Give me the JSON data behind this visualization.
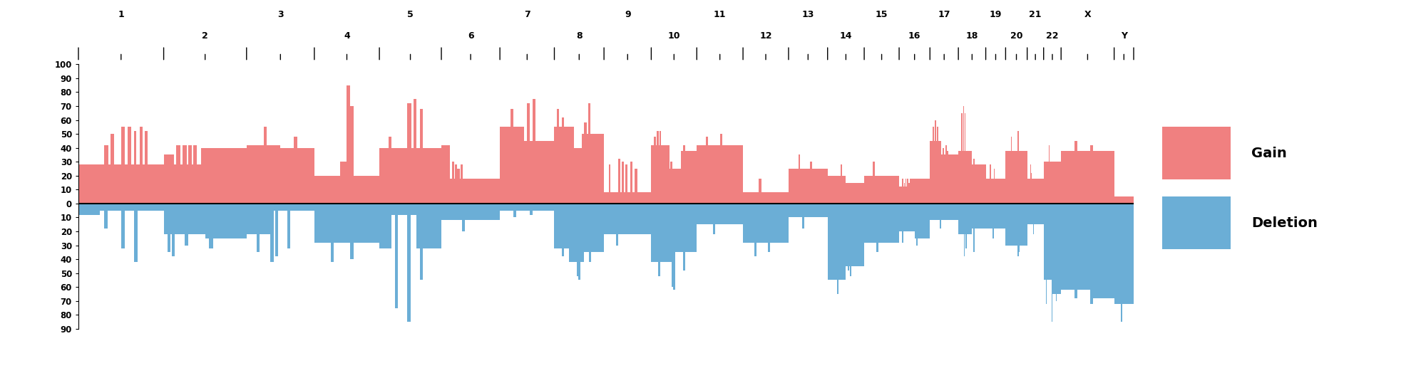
{
  "gain_color": "#F08080",
  "deletion_color": "#6BAED6",
  "background_color": "#FFFFFF",
  "chromosomes": [
    "1",
    "2",
    "3",
    "4",
    "5",
    "6",
    "7",
    "8",
    "9",
    "10",
    "11",
    "12",
    "13",
    "14",
    "15",
    "16",
    "17",
    "18",
    "19",
    "20",
    "21",
    "22",
    "X",
    "Y"
  ],
  "chr_lengths_mb": [
    249,
    242,
    198,
    190,
    181,
    171,
    159,
    145,
    138,
    133,
    135,
    133,
    114,
    107,
    102,
    90,
    83,
    80,
    58,
    63,
    48,
    51,
    155,
    57
  ],
  "gain_data": {
    "1": [
      {
        "x0f": 0.0,
        "x1f": 1.0,
        "val": 28
      },
      {
        "x0f": 0.3,
        "x1f": 0.35,
        "val": 42
      },
      {
        "x0f": 0.38,
        "x1f": 0.42,
        "val": 50
      },
      {
        "x0f": 0.5,
        "x1f": 0.54,
        "val": 55
      },
      {
        "x0f": 0.58,
        "x1f": 0.62,
        "val": 55
      },
      {
        "x0f": 0.65,
        "x1f": 0.68,
        "val": 52
      },
      {
        "x0f": 0.72,
        "x1f": 0.75,
        "val": 55
      },
      {
        "x0f": 0.78,
        "x1f": 0.81,
        "val": 52
      }
    ],
    "2": [
      {
        "x0f": 0.0,
        "x1f": 0.45,
        "val": 28
      },
      {
        "x0f": 0.0,
        "x1f": 0.12,
        "val": 35
      },
      {
        "x0f": 0.15,
        "x1f": 0.2,
        "val": 42
      },
      {
        "x0f": 0.23,
        "x1f": 0.28,
        "val": 42
      },
      {
        "x0f": 0.3,
        "x1f": 0.34,
        "val": 42
      },
      {
        "x0f": 0.36,
        "x1f": 0.4,
        "val": 42
      },
      {
        "x0f": 0.45,
        "x1f": 1.0,
        "val": 40
      }
    ],
    "3": [
      {
        "x0f": 0.0,
        "x1f": 0.5,
        "val": 42
      },
      {
        "x0f": 0.5,
        "x1f": 1.0,
        "val": 40
      },
      {
        "x0f": 0.25,
        "x1f": 0.3,
        "val": 55
      },
      {
        "x0f": 0.7,
        "x1f": 0.75,
        "val": 48
      }
    ],
    "4": [
      {
        "x0f": 0.0,
        "x1f": 0.4,
        "val": 20
      },
      {
        "x0f": 0.4,
        "x1f": 0.5,
        "val": 30
      },
      {
        "x0f": 0.5,
        "x1f": 0.55,
        "val": 85
      },
      {
        "x0f": 0.55,
        "x1f": 0.6,
        "val": 70
      },
      {
        "x0f": 0.6,
        "x1f": 1.0,
        "val": 20
      }
    ],
    "5": [
      {
        "x0f": 0.0,
        "x1f": 1.0,
        "val": 40
      },
      {
        "x0f": 0.15,
        "x1f": 0.2,
        "val": 48
      },
      {
        "x0f": 0.45,
        "x1f": 0.52,
        "val": 72
      },
      {
        "x0f": 0.55,
        "x1f": 0.6,
        "val": 75
      },
      {
        "x0f": 0.65,
        "x1f": 0.7,
        "val": 68
      }
    ],
    "6": [
      {
        "x0f": 0.0,
        "x1f": 0.15,
        "val": 42
      },
      {
        "x0f": 0.15,
        "x1f": 0.4,
        "val": 18
      },
      {
        "x0f": 0.18,
        "x1f": 0.22,
        "val": 30
      },
      {
        "x0f": 0.23,
        "x1f": 0.27,
        "val": 28
      },
      {
        "x0f": 0.27,
        "x1f": 0.32,
        "val": 25
      },
      {
        "x0f": 0.33,
        "x1f": 0.37,
        "val": 28
      },
      {
        "x0f": 0.4,
        "x1f": 1.0,
        "val": 18
      }
    ],
    "7": [
      {
        "x0f": 0.0,
        "x1f": 0.45,
        "val": 55
      },
      {
        "x0f": 0.45,
        "x1f": 1.0,
        "val": 45
      },
      {
        "x0f": 0.2,
        "x1f": 0.25,
        "val": 68
      },
      {
        "x0f": 0.5,
        "x1f": 0.55,
        "val": 72
      },
      {
        "x0f": 0.6,
        "x1f": 0.65,
        "val": 75
      }
    ],
    "8": [
      {
        "x0f": 0.0,
        "x1f": 0.4,
        "val": 55
      },
      {
        "x0f": 0.4,
        "x1f": 0.55,
        "val": 40
      },
      {
        "x0f": 0.55,
        "x1f": 1.0,
        "val": 50
      },
      {
        "x0f": 0.05,
        "x1f": 0.1,
        "val": 68
      },
      {
        "x0f": 0.15,
        "x1f": 0.2,
        "val": 62
      },
      {
        "x0f": 0.6,
        "x1f": 0.65,
        "val": 58
      },
      {
        "x0f": 0.68,
        "x1f": 0.73,
        "val": 72
      }
    ],
    "9": [
      {
        "x0f": 0.0,
        "x1f": 1.0,
        "val": 8
      },
      {
        "x0f": 0.1,
        "x1f": 0.14,
        "val": 28
      },
      {
        "x0f": 0.3,
        "x1f": 0.35,
        "val": 32
      },
      {
        "x0f": 0.38,
        "x1f": 0.42,
        "val": 30
      },
      {
        "x0f": 0.45,
        "x1f": 0.5,
        "val": 28
      },
      {
        "x0f": 0.55,
        "x1f": 0.6,
        "val": 30
      },
      {
        "x0f": 0.65,
        "x1f": 0.7,
        "val": 25
      }
    ],
    "10": [
      {
        "x0f": 0.0,
        "x1f": 0.4,
        "val": 42
      },
      {
        "x0f": 0.4,
        "x1f": 0.65,
        "val": 25
      },
      {
        "x0f": 0.65,
        "x1f": 1.0,
        "val": 38
      },
      {
        "x0f": 0.05,
        "x1f": 0.1,
        "val": 48
      },
      {
        "x0f": 0.12,
        "x1f": 0.16,
        "val": 52
      },
      {
        "x0f": 0.18,
        "x1f": 0.22,
        "val": 52
      },
      {
        "x0f": 0.42,
        "x1f": 0.46,
        "val": 30
      },
      {
        "x0f": 0.7,
        "x1f": 0.74,
        "val": 42
      }
    ],
    "11": [
      {
        "x0f": 0.0,
        "x1f": 1.0,
        "val": 42
      },
      {
        "x0f": 0.2,
        "x1f": 0.25,
        "val": 48
      },
      {
        "x0f": 0.5,
        "x1f": 0.55,
        "val": 50
      }
    ],
    "12": [
      {
        "x0f": 0.0,
        "x1f": 1.0,
        "val": 8
      },
      {
        "x0f": 0.35,
        "x1f": 0.4,
        "val": 18
      }
    ],
    "13": [
      {
        "x0f": 0.0,
        "x1f": 1.0,
        "val": 25
      },
      {
        "x0f": 0.25,
        "x1f": 0.3,
        "val": 35
      },
      {
        "x0f": 0.55,
        "x1f": 0.6,
        "val": 30
      }
    ],
    "14": [
      {
        "x0f": 0.0,
        "x1f": 0.5,
        "val": 20
      },
      {
        "x0f": 0.5,
        "x1f": 1.0,
        "val": 15
      },
      {
        "x0f": 0.35,
        "x1f": 0.4,
        "val": 28
      }
    ],
    "15": [
      {
        "x0f": 0.0,
        "x1f": 1.0,
        "val": 20
      },
      {
        "x0f": 0.25,
        "x1f": 0.3,
        "val": 30
      }
    ],
    "16": [
      {
        "x0f": 0.0,
        "x1f": 0.4,
        "val": 12
      },
      {
        "x0f": 0.4,
        "x1f": 1.0,
        "val": 18
      },
      {
        "x0f": 0.1,
        "x1f": 0.14,
        "val": 18
      },
      {
        "x0f": 0.15,
        "x1f": 0.19,
        "val": 15
      },
      {
        "x0f": 0.2,
        "x1f": 0.24,
        "val": 18
      },
      {
        "x0f": 0.25,
        "x1f": 0.29,
        "val": 18
      },
      {
        "x0f": 0.3,
        "x1f": 0.34,
        "val": 15
      },
      {
        "x0f": 0.35,
        "x1f": 0.39,
        "val": 18
      }
    ],
    "17": [
      {
        "x0f": 0.0,
        "x1f": 0.4,
        "val": 45
      },
      {
        "x0f": 0.4,
        "x1f": 1.0,
        "val": 35
      },
      {
        "x0f": 0.1,
        "x1f": 0.15,
        "val": 55
      },
      {
        "x0f": 0.17,
        "x1f": 0.21,
        "val": 60
      },
      {
        "x0f": 0.25,
        "x1f": 0.3,
        "val": 55
      },
      {
        "x0f": 0.45,
        "x1f": 0.5,
        "val": 40
      },
      {
        "x0f": 0.55,
        "x1f": 0.6,
        "val": 42
      },
      {
        "x0f": 0.6,
        "x1f": 0.65,
        "val": 38
      }
    ],
    "18": [
      {
        "x0f": 0.0,
        "x1f": 0.5,
        "val": 38
      },
      {
        "x0f": 0.5,
        "x1f": 1.0,
        "val": 28
      },
      {
        "x0f": 0.1,
        "x1f": 0.15,
        "val": 65
      },
      {
        "x0f": 0.17,
        "x1f": 0.21,
        "val": 70
      },
      {
        "x0f": 0.22,
        "x1f": 0.26,
        "val": 65
      },
      {
        "x0f": 0.55,
        "x1f": 0.6,
        "val": 32
      }
    ],
    "19": [
      {
        "x0f": 0.0,
        "x1f": 1.0,
        "val": 18
      },
      {
        "x0f": 0.2,
        "x1f": 0.25,
        "val": 28
      },
      {
        "x0f": 0.4,
        "x1f": 0.45,
        "val": 25
      }
    ],
    "20": [
      {
        "x0f": 0.0,
        "x1f": 1.0,
        "val": 38
      },
      {
        "x0f": 0.25,
        "x1f": 0.3,
        "val": 48
      },
      {
        "x0f": 0.55,
        "x1f": 0.6,
        "val": 52
      }
    ],
    "21": [
      {
        "x0f": 0.0,
        "x1f": 1.0,
        "val": 18
      },
      {
        "x0f": 0.2,
        "x1f": 0.24,
        "val": 28
      },
      {
        "x0f": 0.25,
        "x1f": 0.29,
        "val": 22
      }
    ],
    "22": [
      {
        "x0f": 0.0,
        "x1f": 1.0,
        "val": 30
      },
      {
        "x0f": 0.3,
        "x1f": 0.35,
        "val": 42
      }
    ],
    "X": [
      {
        "x0f": 0.0,
        "x1f": 1.0,
        "val": 38
      },
      {
        "x0f": 0.25,
        "x1f": 0.3,
        "val": 45
      },
      {
        "x0f": 0.55,
        "x1f": 0.6,
        "val": 42
      }
    ],
    "Y": [
      {
        "x0f": 0.0,
        "x1f": 1.0,
        "val": 5
      }
    ]
  },
  "deletion_data": {
    "1": [
      {
        "x0f": 0.0,
        "x1f": 0.25,
        "val": 8
      },
      {
        "x0f": 0.25,
        "x1f": 1.0,
        "val": 5
      },
      {
        "x0f": 0.3,
        "x1f": 0.34,
        "val": 18
      },
      {
        "x0f": 0.5,
        "x1f": 0.54,
        "val": 32
      },
      {
        "x0f": 0.65,
        "x1f": 0.69,
        "val": 42
      }
    ],
    "2": [
      {
        "x0f": 0.0,
        "x1f": 0.5,
        "val": 22
      },
      {
        "x0f": 0.5,
        "x1f": 1.0,
        "val": 25
      },
      {
        "x0f": 0.25,
        "x1f": 0.3,
        "val": 30
      },
      {
        "x0f": 0.55,
        "x1f": 0.6,
        "val": 32
      },
      {
        "x0f": 0.05,
        "x1f": 0.08,
        "val": 35
      },
      {
        "x0f": 0.1,
        "x1f": 0.13,
        "val": 38
      }
    ],
    "3": [
      {
        "x0f": 0.0,
        "x1f": 0.4,
        "val": 22
      },
      {
        "x0f": 0.4,
        "x1f": 1.0,
        "val": 5
      },
      {
        "x0f": 0.15,
        "x1f": 0.19,
        "val": 35
      },
      {
        "x0f": 0.35,
        "x1f": 0.4,
        "val": 42
      },
      {
        "x0f": 0.42,
        "x1f": 0.46,
        "val": 38
      },
      {
        "x0f": 0.6,
        "x1f": 0.64,
        "val": 32
      }
    ],
    "4": [
      {
        "x0f": 0.0,
        "x1f": 1.0,
        "val": 28
      },
      {
        "x0f": 0.25,
        "x1f": 0.3,
        "val": 42
      },
      {
        "x0f": 0.55,
        "x1f": 0.6,
        "val": 40
      }
    ],
    "5": [
      {
        "x0f": 0.0,
        "x1f": 0.2,
        "val": 32
      },
      {
        "x0f": 0.2,
        "x1f": 0.6,
        "val": 8
      },
      {
        "x0f": 0.6,
        "x1f": 1.0,
        "val": 32
      },
      {
        "x0f": 0.25,
        "x1f": 0.3,
        "val": 75
      },
      {
        "x0f": 0.45,
        "x1f": 0.5,
        "val": 85
      },
      {
        "x0f": 0.65,
        "x1f": 0.7,
        "val": 55
      }
    ],
    "6": [
      {
        "x0f": 0.0,
        "x1f": 1.0,
        "val": 12
      },
      {
        "x0f": 0.35,
        "x1f": 0.4,
        "val": 20
      }
    ],
    "7": [
      {
        "x0f": 0.0,
        "x1f": 1.0,
        "val": 5
      },
      {
        "x0f": 0.25,
        "x1f": 0.3,
        "val": 10
      },
      {
        "x0f": 0.55,
        "x1f": 0.6,
        "val": 8
      }
    ],
    "8": [
      {
        "x0f": 0.0,
        "x1f": 0.3,
        "val": 32
      },
      {
        "x0f": 0.3,
        "x1f": 0.6,
        "val": 42
      },
      {
        "x0f": 0.6,
        "x1f": 1.0,
        "val": 35
      },
      {
        "x0f": 0.15,
        "x1f": 0.19,
        "val": 38
      },
      {
        "x0f": 0.45,
        "x1f": 0.49,
        "val": 52
      },
      {
        "x0f": 0.48,
        "x1f": 0.52,
        "val": 55
      },
      {
        "x0f": 0.7,
        "x1f": 0.74,
        "val": 42
      }
    ],
    "9": [
      {
        "x0f": 0.0,
        "x1f": 1.0,
        "val": 22
      },
      {
        "x0f": 0.25,
        "x1f": 0.3,
        "val": 30
      }
    ],
    "10": [
      {
        "x0f": 0.0,
        "x1f": 0.5,
        "val": 42
      },
      {
        "x0f": 0.5,
        "x1f": 1.0,
        "val": 35
      },
      {
        "x0f": 0.15,
        "x1f": 0.19,
        "val": 52
      },
      {
        "x0f": 0.45,
        "x1f": 0.49,
        "val": 60
      },
      {
        "x0f": 0.48,
        "x1f": 0.52,
        "val": 62
      },
      {
        "x0f": 0.7,
        "x1f": 0.74,
        "val": 48
      }
    ],
    "11": [
      {
        "x0f": 0.0,
        "x1f": 1.0,
        "val": 15
      },
      {
        "x0f": 0.35,
        "x1f": 0.4,
        "val": 22
      }
    ],
    "12": [
      {
        "x0f": 0.0,
        "x1f": 1.0,
        "val": 28
      },
      {
        "x0f": 0.25,
        "x1f": 0.3,
        "val": 38
      },
      {
        "x0f": 0.55,
        "x1f": 0.6,
        "val": 35
      }
    ],
    "13": [
      {
        "x0f": 0.0,
        "x1f": 1.0,
        "val": 10
      },
      {
        "x0f": 0.35,
        "x1f": 0.4,
        "val": 18
      }
    ],
    "14": [
      {
        "x0f": 0.0,
        "x1f": 0.5,
        "val": 55
      },
      {
        "x0f": 0.5,
        "x1f": 1.0,
        "val": 45
      },
      {
        "x0f": 0.25,
        "x1f": 0.3,
        "val": 65
      },
      {
        "x0f": 0.55,
        "x1f": 0.59,
        "val": 48
      },
      {
        "x0f": 0.6,
        "x1f": 0.64,
        "val": 52
      }
    ],
    "15": [
      {
        "x0f": 0.0,
        "x1f": 1.0,
        "val": 28
      },
      {
        "x0f": 0.35,
        "x1f": 0.4,
        "val": 35
      }
    ],
    "16": [
      {
        "x0f": 0.0,
        "x1f": 0.5,
        "val": 20
      },
      {
        "x0f": 0.5,
        "x1f": 1.0,
        "val": 25
      },
      {
        "x0f": 0.1,
        "x1f": 0.14,
        "val": 28
      },
      {
        "x0f": 0.55,
        "x1f": 0.6,
        "val": 30
      }
    ],
    "17": [
      {
        "x0f": 0.0,
        "x1f": 1.0,
        "val": 12
      },
      {
        "x0f": 0.35,
        "x1f": 0.4,
        "val": 18
      }
    ],
    "18": [
      {
        "x0f": 0.0,
        "x1f": 0.5,
        "val": 22
      },
      {
        "x0f": 0.5,
        "x1f": 1.0,
        "val": 18
      },
      {
        "x0f": 0.25,
        "x1f": 0.3,
        "val": 32
      },
      {
        "x0f": 0.55,
        "x1f": 0.59,
        "val": 35
      },
      {
        "x0f": 0.2,
        "x1f": 0.24,
        "val": 38
      }
    ],
    "19": [
      {
        "x0f": 0.0,
        "x1f": 1.0,
        "val": 18
      },
      {
        "x0f": 0.35,
        "x1f": 0.4,
        "val": 25
      }
    ],
    "20": [
      {
        "x0f": 0.0,
        "x1f": 1.0,
        "val": 30
      },
      {
        "x0f": 0.55,
        "x1f": 0.6,
        "val": 38
      },
      {
        "x0f": 0.62,
        "x1f": 0.66,
        "val": 35
      }
    ],
    "21": [
      {
        "x0f": 0.0,
        "x1f": 1.0,
        "val": 15
      },
      {
        "x0f": 0.35,
        "x1f": 0.4,
        "val": 22
      }
    ],
    "22": [
      {
        "x0f": 0.0,
        "x1f": 0.5,
        "val": 55
      },
      {
        "x0f": 0.5,
        "x1f": 1.0,
        "val": 65
      },
      {
        "x0f": 0.15,
        "x1f": 0.19,
        "val": 72
      },
      {
        "x0f": 0.45,
        "x1f": 0.49,
        "val": 85
      },
      {
        "x0f": 0.7,
        "x1f": 0.74,
        "val": 70
      }
    ],
    "X": [
      {
        "x0f": 0.0,
        "x1f": 0.6,
        "val": 62
      },
      {
        "x0f": 0.6,
        "x1f": 1.0,
        "val": 68
      },
      {
        "x0f": 0.25,
        "x1f": 0.3,
        "val": 68
      },
      {
        "x0f": 0.55,
        "x1f": 0.6,
        "val": 72
      }
    ],
    "Y": [
      {
        "x0f": 0.0,
        "x1f": 1.0,
        "val": 72
      },
      {
        "x0f": 0.35,
        "x1f": 0.4,
        "val": 85
      }
    ]
  }
}
